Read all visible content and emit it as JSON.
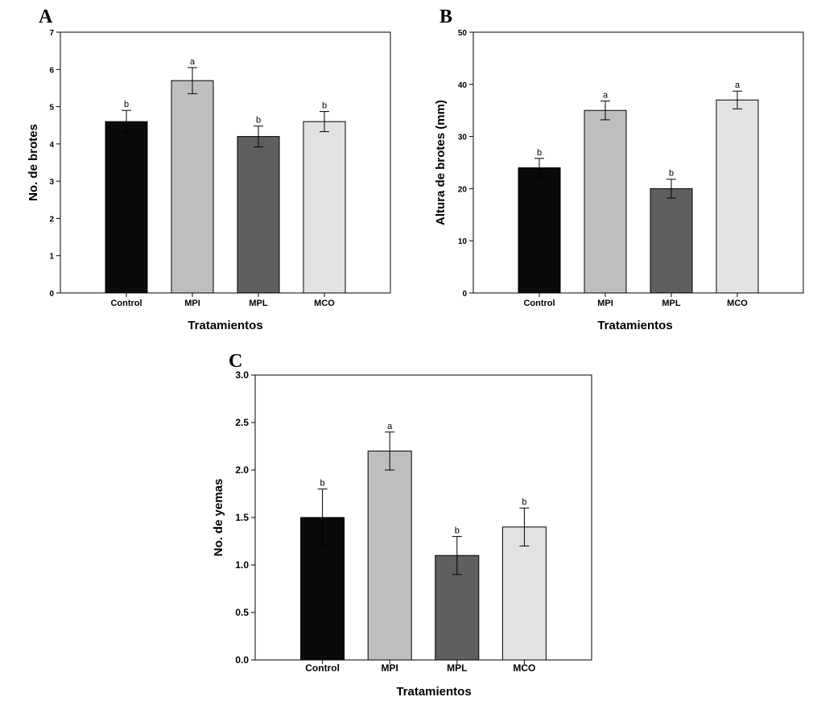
{
  "chart_data": [
    {
      "type": "bar",
      "panel": "A",
      "categories": [
        "Control",
        "MPI",
        "MPL",
        "MCO"
      ],
      "values": [
        4.6,
        5.7,
        4.2,
        4.6
      ],
      "errors": [
        0.3,
        0.35,
        0.28,
        0.27
      ],
      "significance": [
        "b",
        "a",
        "b",
        "b"
      ],
      "colors": [
        "#0a0a0a",
        "#bebebe",
        "#5f5f5f",
        "#e2e2e2"
      ],
      "xlabel": "Tratamientos",
      "ylabel": "No. de brotes",
      "ylim": [
        0,
        7
      ],
      "yticks": [
        0,
        1,
        2,
        3,
        4,
        5,
        6,
        7
      ],
      "ytick_labels": [
        "0",
        "1",
        "2",
        "3",
        "4",
        "5",
        "6",
        "7"
      ]
    },
    {
      "type": "bar",
      "panel": "B",
      "categories": [
        "Control",
        "MPI",
        "MPL",
        "MCO"
      ],
      "values": [
        24,
        35,
        20,
        37
      ],
      "errors": [
        1.8,
        1.8,
        1.8,
        1.7
      ],
      "significance": [
        "b",
        "a",
        "b",
        "a"
      ],
      "colors": [
        "#0a0a0a",
        "#bebebe",
        "#5f5f5f",
        "#e2e2e2"
      ],
      "xlabel": "Tratamientos",
      "ylabel": "Altura de brotes (mm)",
      "ylim": [
        0,
        50
      ],
      "yticks": [
        0,
        10,
        20,
        30,
        40,
        50
      ],
      "ytick_labels": [
        "0",
        "10",
        "20",
        "30",
        "40",
        "50"
      ]
    },
    {
      "type": "bar",
      "panel": "C",
      "categories": [
        "Control",
        "MPI",
        "MPL",
        "MCO"
      ],
      "values": [
        1.5,
        2.2,
        1.1,
        1.4
      ],
      "errors": [
        0.3,
        0.2,
        0.2,
        0.2
      ],
      "significance": [
        "b",
        "a",
        "b",
        "b"
      ],
      "colors": [
        "#0a0a0a",
        "#bebebe",
        "#5f5f5f",
        "#e2e2e2"
      ],
      "xlabel": "Tratamientos",
      "ylabel": "No. de yemas",
      "ylim": [
        0,
        3
      ],
      "yticks": [
        0,
        0.5,
        1,
        1.5,
        2,
        2.5,
        3
      ],
      "ytick_labels": [
        "0.0",
        "0.5",
        "1.0",
        "1.5",
        "2.0",
        "2.5",
        "3.0"
      ]
    }
  ]
}
